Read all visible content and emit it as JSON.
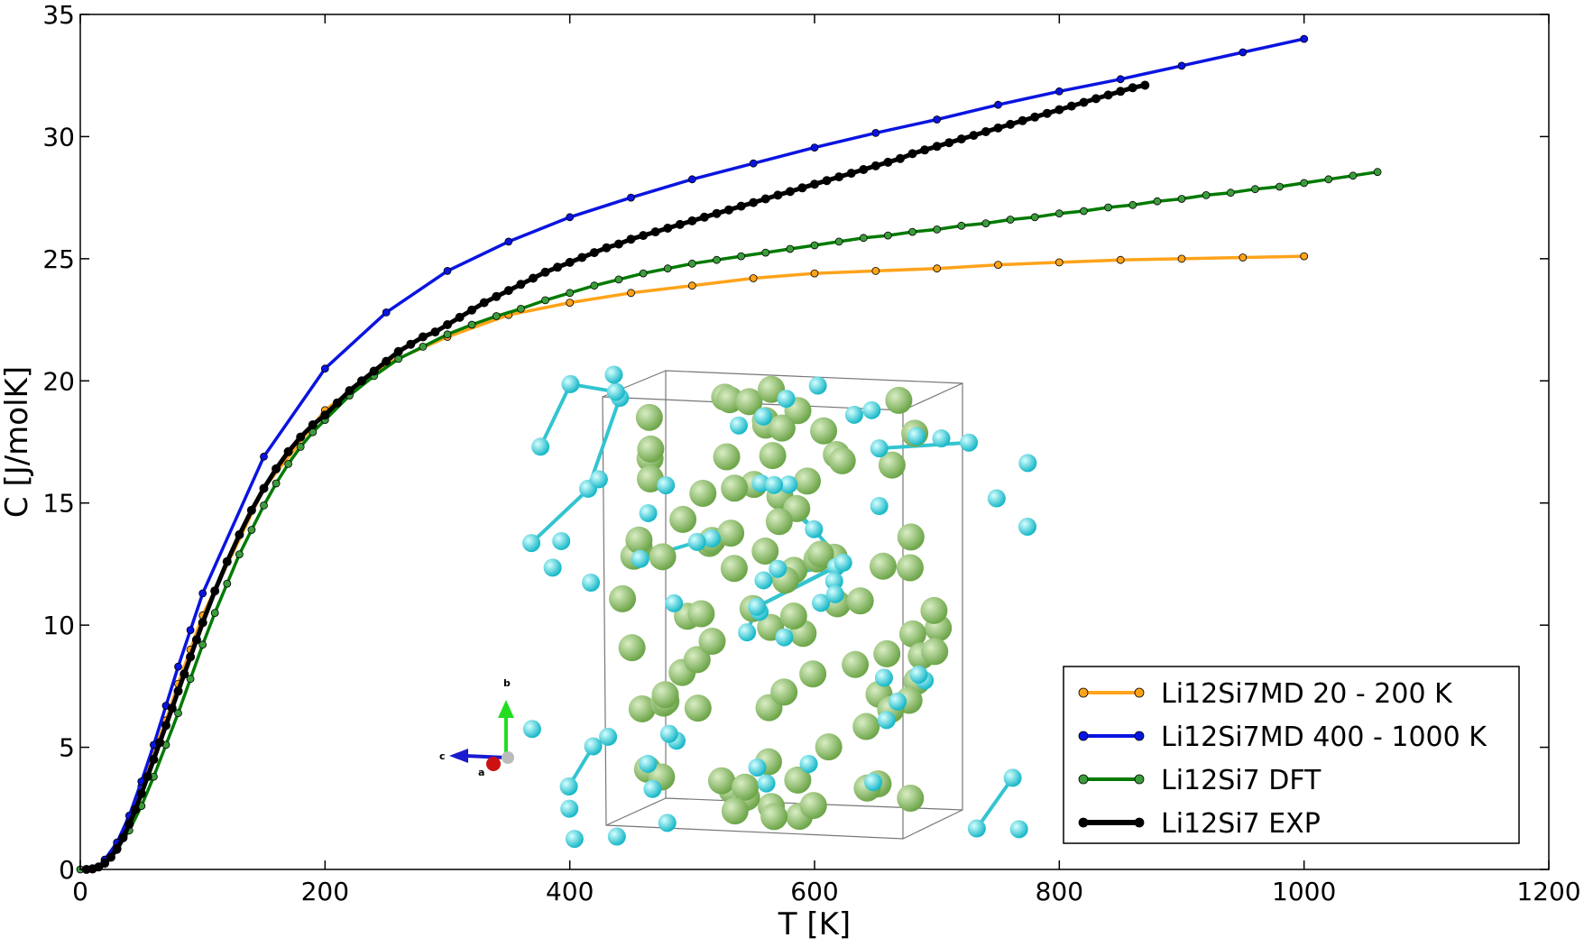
{
  "chart_data": {
    "type": "line",
    "title": "",
    "xlabel": "T [K]",
    "ylabel": "C [J/molK]",
    "xlim": [
      0,
      1200
    ],
    "ylim": [
      0,
      35
    ],
    "xticks": [
      0,
      200,
      400,
      600,
      800,
      1000,
      1200
    ],
    "yticks": [
      0,
      5,
      10,
      15,
      20,
      25,
      30,
      35
    ],
    "grid": false,
    "legend_position": "lower-right",
    "series": [
      {
        "name": "Li12Si7MD 20 - 200 K",
        "color": "#ffa31a",
        "marker_fill": "#ffa31a",
        "x": [
          20,
          30,
          40,
          50,
          60,
          70,
          80,
          90,
          100,
          150,
          200,
          250,
          300,
          350,
          400,
          450,
          500,
          550,
          600,
          650,
          700,
          750,
          800,
          850,
          900,
          950,
          1000
        ],
        "y": [
          0.4,
          1.0,
          2.0,
          3.4,
          4.8,
          6.1,
          7.6,
          9.0,
          10.4,
          15.6,
          18.8,
          20.7,
          21.8,
          22.7,
          23.2,
          23.6,
          23.9,
          24.2,
          24.4,
          24.5,
          24.6,
          24.75,
          24.85,
          24.95,
          25.0,
          25.05,
          25.1
        ]
      },
      {
        "name": "Li12Si7MD 400 - 1000 K",
        "color": "#0a14e0",
        "marker_fill": "#0a14e0",
        "x": [
          20,
          30,
          40,
          50,
          60,
          70,
          80,
          90,
          100,
          150,
          200,
          250,
          300,
          350,
          400,
          450,
          500,
          550,
          600,
          650,
          700,
          750,
          800,
          850,
          900,
          950,
          1000
        ],
        "y": [
          0.4,
          1.1,
          2.2,
          3.6,
          5.1,
          6.7,
          8.3,
          9.8,
          11.3,
          16.9,
          20.5,
          22.8,
          24.5,
          25.7,
          26.7,
          27.5,
          28.25,
          28.9,
          29.55,
          30.15,
          30.7,
          31.3,
          31.85,
          32.35,
          32.9,
          33.45,
          34.0
        ]
      },
      {
        "name": "Li12Si7 DFT",
        "color": "#007a00",
        "marker_fill": "#3c9c3c",
        "x": [
          0,
          10,
          20,
          30,
          40,
          50,
          60,
          70,
          80,
          90,
          100,
          110,
          120,
          130,
          140,
          150,
          160,
          170,
          180,
          190,
          200,
          220,
          240,
          260,
          280,
          300,
          320,
          340,
          360,
          380,
          400,
          420,
          440,
          460,
          480,
          500,
          520,
          540,
          560,
          580,
          600,
          620,
          640,
          660,
          680,
          700,
          720,
          740,
          760,
          780,
          800,
          820,
          840,
          860,
          880,
          900,
          920,
          940,
          960,
          980,
          1000,
          1020,
          1040,
          1060
        ],
        "y": [
          0,
          0.05,
          0.3,
          0.8,
          1.6,
          2.6,
          3.8,
          5.1,
          6.4,
          7.8,
          9.2,
          10.5,
          11.7,
          12.9,
          13.9,
          14.9,
          15.8,
          16.6,
          17.3,
          17.9,
          18.4,
          19.4,
          20.2,
          20.9,
          21.4,
          21.9,
          22.3,
          22.65,
          22.95,
          23.3,
          23.6,
          23.9,
          24.15,
          24.4,
          24.6,
          24.8,
          24.95,
          25.1,
          25.25,
          25.4,
          25.55,
          25.7,
          25.85,
          25.95,
          26.1,
          26.2,
          26.35,
          26.45,
          26.6,
          26.7,
          26.85,
          26.95,
          27.1,
          27.2,
          27.35,
          27.45,
          27.6,
          27.7,
          27.85,
          27.95,
          28.1,
          28.25,
          28.4,
          28.55
        ]
      },
      {
        "name": "Li12Si7 EXP",
        "color": "#000000",
        "marker_fill": "#000000",
        "x": [
          5,
          10,
          15,
          20,
          25,
          30,
          35,
          40,
          45,
          50,
          55,
          60,
          65,
          70,
          75,
          80,
          85,
          90,
          95,
          100,
          110,
          120,
          130,
          140,
          150,
          160,
          170,
          180,
          190,
          200,
          210,
          220,
          230,
          240,
          250,
          260,
          270,
          280,
          290,
          300,
          310,
          320,
          330,
          340,
          350,
          360,
          370,
          380,
          390,
          400,
          410,
          420,
          430,
          440,
          450,
          460,
          470,
          480,
          490,
          500,
          510,
          520,
          530,
          540,
          550,
          560,
          570,
          580,
          590,
          600,
          610,
          620,
          630,
          640,
          650,
          660,
          670,
          680,
          690,
          700,
          710,
          720,
          730,
          740,
          750,
          760,
          770,
          780,
          790,
          800,
          810,
          820,
          830,
          840,
          850,
          860,
          870
        ],
        "y": [
          0.0,
          0.02,
          0.1,
          0.25,
          0.5,
          0.85,
          1.3,
          1.85,
          2.45,
          3.1,
          3.8,
          4.5,
          5.2,
          5.9,
          6.6,
          7.3,
          8.0,
          8.7,
          9.4,
          10.1,
          11.4,
          12.6,
          13.7,
          14.7,
          15.6,
          16.4,
          17.1,
          17.7,
          18.2,
          18.6,
          19.1,
          19.6,
          20.0,
          20.4,
          20.8,
          21.2,
          21.5,
          21.8,
          22.0,
          22.3,
          22.6,
          22.9,
          23.2,
          23.45,
          23.7,
          23.95,
          24.2,
          24.45,
          24.65,
          24.85,
          25.05,
          25.25,
          25.45,
          25.6,
          25.8,
          25.95,
          26.1,
          26.25,
          26.4,
          26.55,
          26.7,
          26.85,
          27.0,
          27.15,
          27.3,
          27.45,
          27.6,
          27.75,
          27.9,
          28.05,
          28.2,
          28.35,
          28.5,
          28.65,
          28.8,
          28.95,
          29.1,
          29.3,
          29.45,
          29.6,
          29.75,
          29.9,
          30.05,
          30.2,
          30.35,
          30.5,
          30.65,
          30.8,
          30.95,
          31.1,
          31.25,
          31.4,
          31.55,
          31.7,
          31.85,
          32.0,
          32.1
        ]
      }
    ],
    "inset": {
      "description_labels": {
        "axis_b": "b",
        "axis_c": "c",
        "axis_a": "a"
      }
    }
  }
}
